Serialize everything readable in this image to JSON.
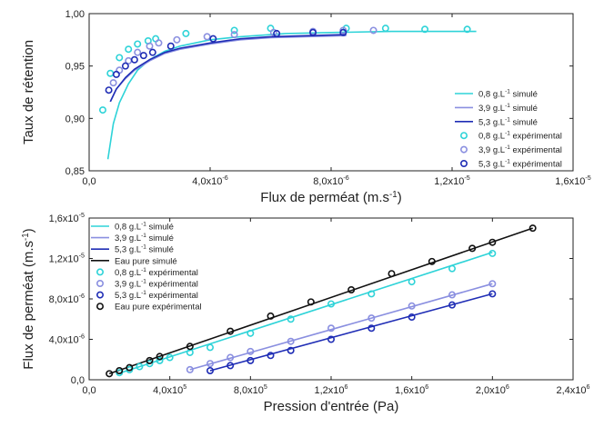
{
  "colors": {
    "c08": "#2ed3d8",
    "c39": "#8a8fe0",
    "c53": "#1f2db5",
    "water": "#111111",
    "axis": "#222222"
  },
  "chart_data": [
    {
      "type": "scatter",
      "xlabel": "Flux de perméat (m.s",
      "xlabel_sup": "-1",
      "xlabel_close": ")",
      "ylabel": "Taux de rétention",
      "xlim": [
        0,
        1.6e-05
      ],
      "ylim": [
        0.85,
        1.0
      ],
      "xticks": [
        {
          "v": 0,
          "label": "0,0"
        },
        {
          "v": 4e-06,
          "label": "4,0x10",
          "exp": "-6"
        },
        {
          "v": 8e-06,
          "label": "8,0x10",
          "exp": "-6"
        },
        {
          "v": 1.2e-05,
          "label": "1,2x10",
          "exp": "-5"
        },
        {
          "v": 1.6e-05,
          "label": "1,6x10",
          "exp": "-5"
        }
      ],
      "yticks": [
        {
          "v": 0.85,
          "label": "0,85"
        },
        {
          "v": 0.9,
          "label": "0,90"
        },
        {
          "v": 0.95,
          "label": "0,95"
        },
        {
          "v": 1.0,
          "label": "1,00"
        }
      ],
      "legend_position": "bottom-right",
      "series": [
        {
          "name": "0,8 g.L",
          "sup": "-1",
          "suffix": " simulé",
          "kind": "line",
          "color": "c08",
          "x": [
            6.2e-07,
            8e-07,
            1e-06,
            1.3e-06,
            1.6e-06,
            2e-06,
            2.5e-06,
            3e-06,
            4e-06,
            5e-06,
            6.5e-06,
            8e-06,
            1e-05,
            1.28e-05
          ],
          "y": [
            0.861,
            0.895,
            0.915,
            0.933,
            0.946,
            0.956,
            0.964,
            0.969,
            0.975,
            0.978,
            0.981,
            0.982,
            0.983,
            0.983
          ]
        },
        {
          "name": "3,9 g.L",
          "sup": "-1",
          "suffix": " simulé",
          "kind": "line",
          "color": "c39",
          "x": [
            7e-07,
            9e-07,
            1.2e-06,
            1.5e-06,
            2e-06,
            2.5e-06,
            3e-06,
            4e-06,
            5e-06,
            6e-06,
            8.5e-06
          ],
          "y": [
            0.916,
            0.928,
            0.938,
            0.946,
            0.955,
            0.962,
            0.966,
            0.971,
            0.975,
            0.977,
            0.979
          ]
        },
        {
          "name": "5,3 g.L",
          "sup": "-1",
          "suffix": " simulé",
          "kind": "line",
          "color": "c53",
          "x": [
            7e-07,
            9e-07,
            1.2e-06,
            1.5e-06,
            2e-06,
            2.5e-06,
            3e-06,
            4e-06,
            5e-06,
            6e-06,
            8.5e-06
          ],
          "y": [
            0.916,
            0.928,
            0.939,
            0.947,
            0.956,
            0.963,
            0.967,
            0.972,
            0.976,
            0.978,
            0.98
          ]
        },
        {
          "name": "0,8 g.L",
          "sup": "-1",
          "suffix": " expérimental",
          "kind": "points",
          "color": "c08",
          "x": [
            4.5e-07,
            7e-07,
            1e-06,
            1.3e-06,
            1.6e-06,
            1.95e-06,
            2.2e-06,
            3.2e-06,
            4.8e-06,
            6e-06,
            8.5e-06,
            9.8e-06,
            1.11e-05,
            1.25e-05
          ],
          "y": [
            0.908,
            0.943,
            0.958,
            0.966,
            0.971,
            0.974,
            0.976,
            0.981,
            0.984,
            0.986,
            0.986,
            0.986,
            0.985,
            0.985
          ]
        },
        {
          "name": "3,9 g.L",
          "sup": "-1",
          "suffix": " expérimental",
          "kind": "points",
          "color": "c39",
          "x": [
            8e-07,
            1e-06,
            1.3e-06,
            1.6e-06,
            2e-06,
            2.3e-06,
            2.9e-06,
            3.9e-06,
            4.8e-06,
            6.1e-06,
            7.4e-06,
            8.4e-06,
            9.4e-06
          ],
          "y": [
            0.934,
            0.946,
            0.955,
            0.963,
            0.969,
            0.972,
            0.975,
            0.978,
            0.98,
            0.982,
            0.983,
            0.984,
            0.984
          ]
        },
        {
          "name": "5,3 g.L",
          "sup": "-1",
          "suffix": " expérimental",
          "kind": "points",
          "color": "c53",
          "x": [
            6.5e-07,
            9e-07,
            1.2e-06,
            1.5e-06,
            1.8e-06,
            2.1e-06,
            2.7e-06,
            4.1e-06,
            6.2e-06,
            7.4e-06,
            8.4e-06
          ],
          "y": [
            0.927,
            0.942,
            0.95,
            0.956,
            0.96,
            0.963,
            0.969,
            0.976,
            0.981,
            0.982,
            0.982
          ]
        }
      ]
    },
    {
      "type": "scatter",
      "xlabel": "Pression d'entrée (Pa)",
      "ylabel": "Flux de perméat (m.s",
      "ylabel_sup": "-1",
      "ylabel_close": ")",
      "xlim": [
        0,
        2400000.0
      ],
      "ylim": [
        0,
        1.6e-05
      ],
      "xticks": [
        {
          "v": 0,
          "label": "0,0"
        },
        {
          "v": 400000.0,
          "label": "4,0x10",
          "exp": "5"
        },
        {
          "v": 800000.0,
          "label": "8,0x10",
          "exp": "5"
        },
        {
          "v": 1200000.0,
          "label": "1,2x10",
          "exp": "6"
        },
        {
          "v": 1600000.0,
          "label": "1,6x10",
          "exp": "6"
        },
        {
          "v": 2000000.0,
          "label": "2,0x10",
          "exp": "6"
        },
        {
          "v": 2400000.0,
          "label": "2,4x10",
          "exp": "6"
        }
      ],
      "yticks": [
        {
          "v": 0,
          "label": "0,0"
        },
        {
          "v": 4e-06,
          "label": "4,0x10",
          "exp": "-6"
        },
        {
          "v": 8e-06,
          "label": "8,0x10",
          "exp": "-6"
        },
        {
          "v": 1.2e-05,
          "label": "1,2x10",
          "exp": "-5"
        },
        {
          "v": 1.6e-05,
          "label": "1,6x10",
          "exp": "-5"
        }
      ],
      "legend_position": "top-left",
      "series": [
        {
          "name": "0,8 g.L",
          "sup": "-1",
          "suffix": " simulé",
          "kind": "line",
          "color": "c08",
          "x": [
            150000.0,
            2000000.0
          ],
          "y": [
            6.5e-07,
            1.26e-05
          ]
        },
        {
          "name": "3,9 g.L",
          "sup": "-1",
          "suffix": " simulé",
          "kind": "line",
          "color": "c39",
          "x": [
            500000.0,
            2000000.0
          ],
          "y": [
            1e-06,
            9.5e-06
          ]
        },
        {
          "name": "5,3 g.L",
          "sup": "-1",
          "suffix": " simulé",
          "kind": "line",
          "color": "c53",
          "x": [
            600000.0,
            2000000.0
          ],
          "y": [
            9e-07,
            8.5e-06
          ]
        },
        {
          "name": "Eau pure simulé",
          "kind": "line",
          "color": "water",
          "x": [
            100000.0,
            2200000.0
          ],
          "y": [
            6e-07,
            1.5e-05
          ]
        },
        {
          "name": "0,8 g.L",
          "sup": "-1",
          "suffix": " expérimental",
          "kind": "points",
          "color": "c08",
          "x": [
            150000.0,
            200000.0,
            250000.0,
            300000.0,
            350000.0,
            400000.0,
            500000.0,
            600000.0,
            800000.0,
            1000000.0,
            1200000.0,
            1400000.0,
            1600000.0,
            1800000.0,
            2000000.0
          ],
          "y": [
            7e-07,
            1e-06,
            1.3e-06,
            1.6e-06,
            1.9e-06,
            2.2e-06,
            2.7e-06,
            3.2e-06,
            4.6e-06,
            6e-06,
            7.5e-06,
            8.5e-06,
            9.7e-06,
            1.1e-05,
            1.25e-05
          ]
        },
        {
          "name": "3,9 g.L",
          "sup": "-1",
          "suffix": " expérimental",
          "kind": "points",
          "color": "c39",
          "x": [
            500000.0,
            600000.0,
            700000.0,
            800000.0,
            1000000.0,
            1200000.0,
            1400000.0,
            1600000.0,
            1800000.0,
            2000000.0
          ],
          "y": [
            1e-06,
            1.6e-06,
            2.2e-06,
            2.8e-06,
            3.8e-06,
            5.1e-06,
            6.1e-06,
            7.3e-06,
            8.4e-06,
            9.5e-06
          ]
        },
        {
          "name": "5,3 g.L",
          "sup": "-1",
          "suffix": " expérimental",
          "kind": "points",
          "color": "c53",
          "x": [
            600000.0,
            700000.0,
            800000.0,
            900000.0,
            1000000.0,
            1200000.0,
            1400000.0,
            1600000.0,
            1800000.0,
            2000000.0
          ],
          "y": [
            9e-07,
            1.4e-06,
            1.9e-06,
            2.4e-06,
            2.9e-06,
            4e-06,
            5.1e-06,
            6.2e-06,
            7.4e-06,
            8.5e-06
          ]
        },
        {
          "name": "Eau pure expérimental",
          "kind": "points",
          "color": "water",
          "x": [
            100000.0,
            150000.0,
            200000.0,
            300000.0,
            350000.0,
            500000.0,
            700000.0,
            900000.0,
            1100000.0,
            1300000.0,
            1500000.0,
            1700000.0,
            1900000.0,
            2000000.0,
            2200000.0
          ],
          "y": [
            6e-07,
            9e-07,
            1.2e-06,
            1.9e-06,
            2.3e-06,
            3.3e-06,
            4.8e-06,
            6.3e-06,
            7.7e-06,
            8.9e-06,
            1.05e-05,
            1.17e-05,
            1.3e-05,
            1.36e-05,
            1.5e-05
          ]
        }
      ]
    }
  ]
}
